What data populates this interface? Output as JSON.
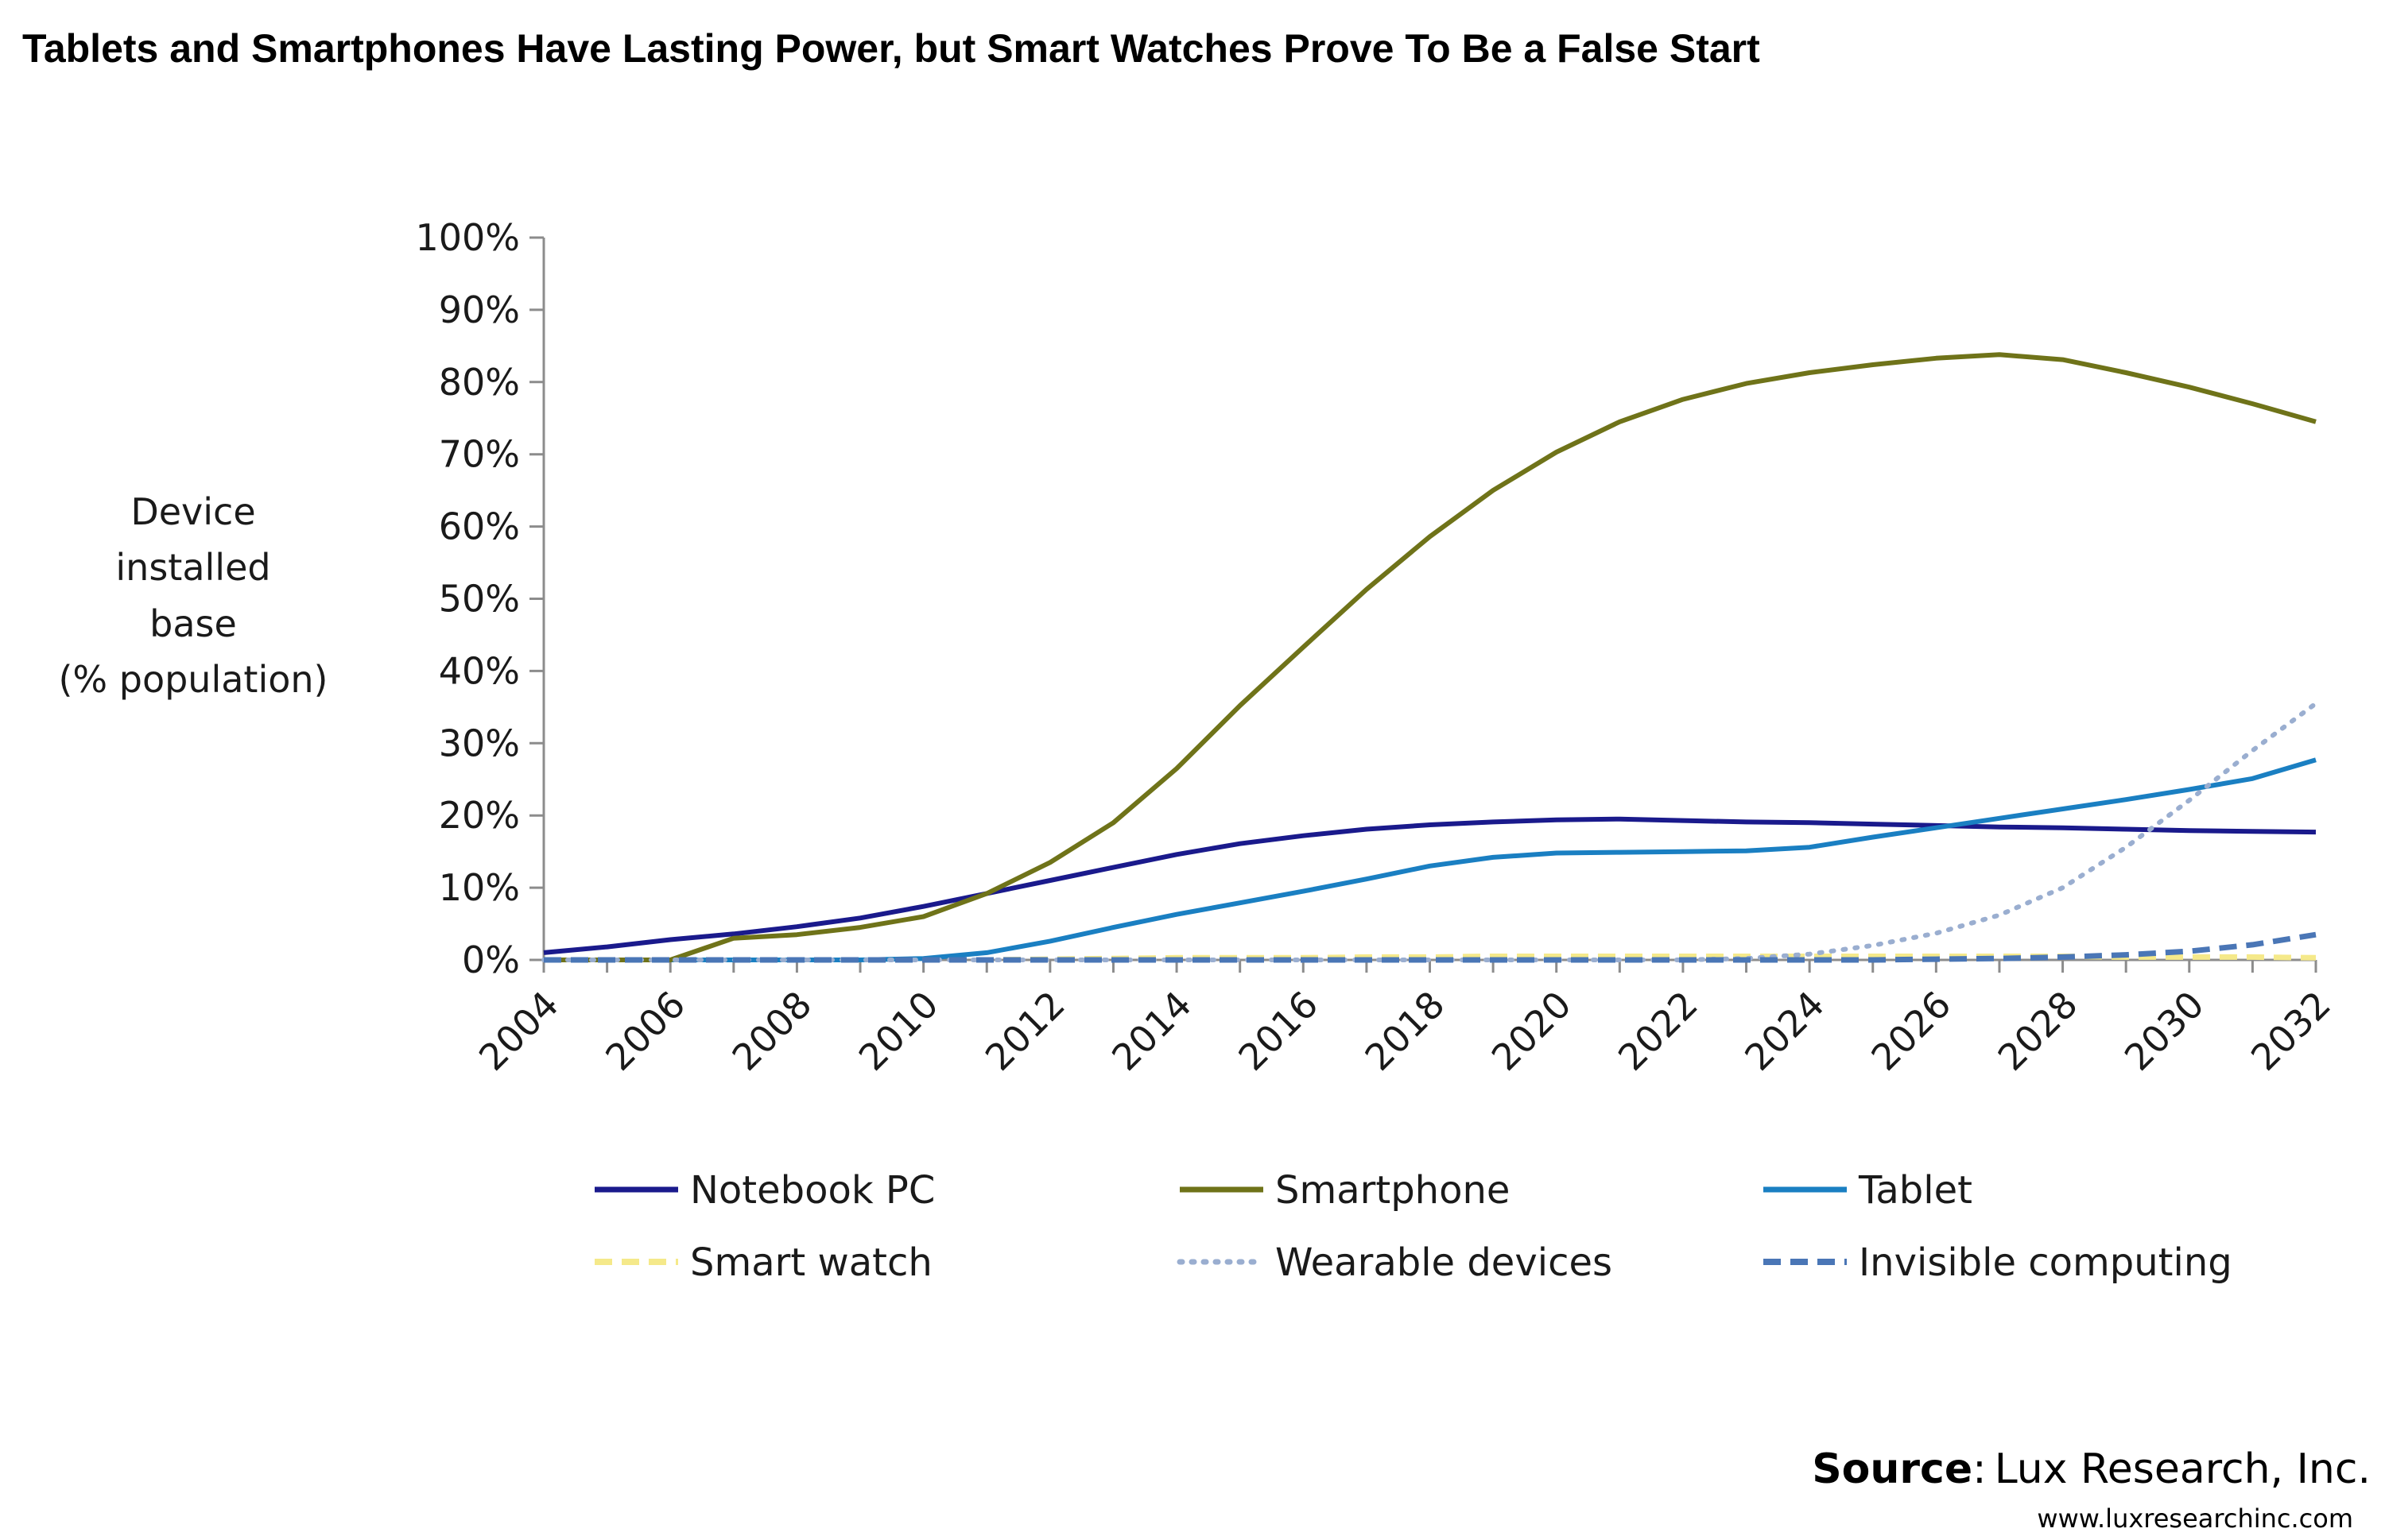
{
  "chart_data": {
    "type": "line",
    "title": "Tablets and Smartphones Have Lasting Power, but Smart Watches Prove To Be a False Start",
    "ylabel": [
      "Device",
      "installed",
      "base",
      "(% population)"
    ],
    "xlabel": "",
    "x": [
      2004,
      2005,
      2006,
      2007,
      2008,
      2009,
      2010,
      2011,
      2012,
      2013,
      2014,
      2015,
      2016,
      2017,
      2018,
      2019,
      2020,
      2021,
      2022,
      2023,
      2024,
      2025,
      2026,
      2027,
      2028,
      2029,
      2030,
      2031,
      2032
    ],
    "x_ticks": [
      "2004",
      "2006",
      "2008",
      "2010",
      "2012",
      "2014",
      "2016",
      "2018",
      "2020",
      "2022",
      "2024",
      "2026",
      "2028",
      "2030",
      "2032"
    ],
    "y_ticks": [
      "0%",
      "10%",
      "20%",
      "30%",
      "40%",
      "50%",
      "60%",
      "70%",
      "80%",
      "90%",
      "100%"
    ],
    "ylim": [
      0,
      100
    ],
    "grid": false,
    "legend_placement": "bottom",
    "series": [
      {
        "name": "Notebook PC",
        "color": "#1a1a8c",
        "style": "solid",
        "values": [
          1,
          1.8,
          2.8,
          3.6,
          4.6,
          5.8,
          7.4,
          9.2,
          11,
          12.8,
          14.6,
          16.1,
          17.2,
          18.1,
          18.7,
          19.1,
          19.4,
          19.5,
          19.3,
          19.1,
          19,
          18.8,
          18.6,
          18.4,
          18.3,
          18.1,
          17.9,
          17.8,
          17.7
        ]
      },
      {
        "name": "Smartphone",
        "color": "#6f7319",
        "style": "solid",
        "values": [
          0,
          0,
          0,
          3,
          3.5,
          4.5,
          6,
          9.2,
          13.5,
          19,
          26.5,
          35.2,
          43.3,
          51.3,
          58.6,
          65,
          70.3,
          74.5,
          77.6,
          79.8,
          81.3,
          82.4,
          83.3,
          83.8,
          83.1,
          81.3,
          79.3,
          77,
          74.5
        ]
      },
      {
        "name": "Tablet",
        "color": "#1a7fc2",
        "style": "solid",
        "values": [
          0,
          0,
          0,
          0,
          0,
          0,
          0.2,
          1,
          2.6,
          4.5,
          6.3,
          7.9,
          9.5,
          11.2,
          13,
          14.2,
          14.8,
          14.9,
          15,
          15.1,
          15.6,
          17,
          18.3,
          19.6,
          20.9,
          22.2,
          23.6,
          25.1,
          27.7
        ]
      },
      {
        "name": "Smart watch",
        "color": "#f5e98a",
        "style": "dashed",
        "values": [
          0,
          0,
          0,
          0,
          0,
          0,
          0,
          0,
          0.1,
          0.2,
          0.3,
          0.3,
          0.3,
          0.4,
          0.4,
          0.5,
          0.5,
          0.5,
          0.5,
          0.5,
          0.5,
          0.5,
          0.5,
          0.5,
          0.5,
          0.4,
          0.4,
          0.4,
          0.3
        ]
      },
      {
        "name": "Wearable devices",
        "color": "#9aaed0",
        "style": "dotted",
        "values": [
          0,
          0,
          0,
          0,
          0,
          0,
          0,
          0,
          0,
          0,
          0,
          0,
          0,
          0,
          0,
          0,
          0,
          0,
          0,
          0.2,
          0.8,
          2,
          3.7,
          6.2,
          10,
          15.6,
          22.1,
          29,
          35.5
        ]
      },
      {
        "name": "Invisible computing",
        "color": "#4a76b6",
        "style": "dashed",
        "values": [
          0,
          0,
          0,
          0,
          0,
          0,
          0,
          0,
          0,
          0,
          0,
          0,
          0,
          0,
          0,
          0,
          0,
          0,
          0,
          0,
          0,
          0,
          0.1,
          0.2,
          0.4,
          0.7,
          1.2,
          2.1,
          3.5
        ]
      }
    ]
  },
  "source": {
    "label": "Source",
    "sep": ":",
    "text": "Lux Research, Inc.",
    "url": "www.luxresearchinc.com"
  }
}
